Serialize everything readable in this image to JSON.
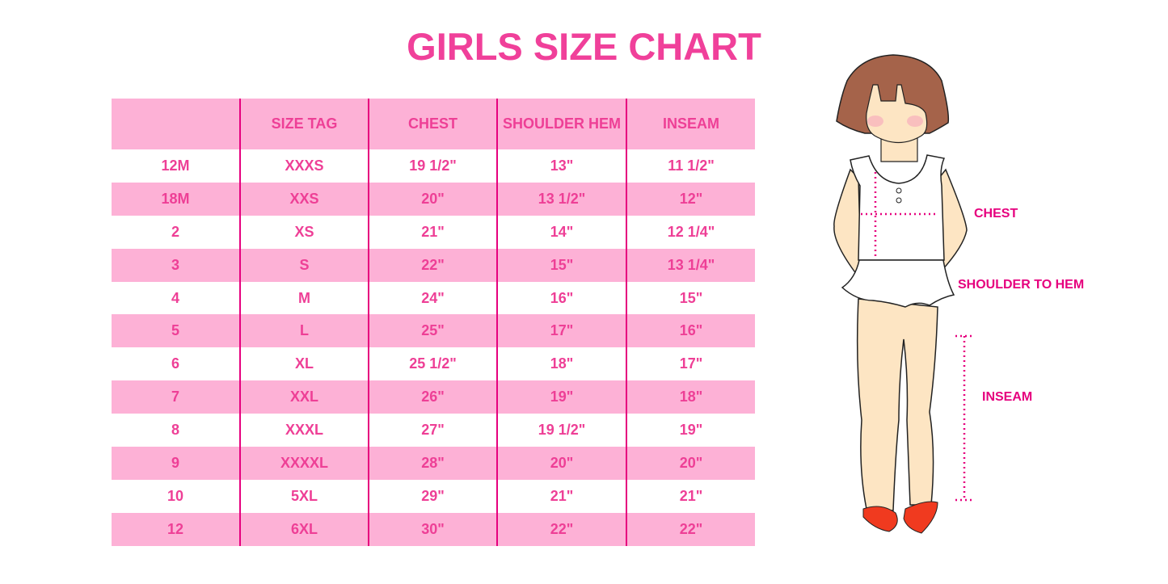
{
  "title": "GIRLS SIZE CHART",
  "table": {
    "headers": [
      "",
      "SIZE TAG",
      "CHEST",
      "SHOULDER HEM",
      "INSEAM"
    ],
    "rows": [
      [
        "12M",
        "XXXS",
        "19 1/2\"",
        "13\"",
        "11 1/2\""
      ],
      [
        "18M",
        "XXS",
        "20\"",
        "13 1/2\"",
        "12\""
      ],
      [
        "2",
        "XS",
        "21\"",
        "14\"",
        "12 1/4\""
      ],
      [
        "3",
        "S",
        "22\"",
        "15\"",
        "13 1/4\""
      ],
      [
        "4",
        "M",
        "24\"",
        "16\"",
        "15\""
      ],
      [
        "5",
        "L",
        "25\"",
        "17\"",
        "16\""
      ],
      [
        "6",
        "XL",
        "25 1/2\"",
        "18\"",
        "17\""
      ],
      [
        "7",
        "XXL",
        "26\"",
        "19\"",
        "18\""
      ],
      [
        "8",
        "XXXL",
        "27\"",
        "19 1/2\"",
        "19\""
      ],
      [
        "9",
        "XXXXL",
        "28\"",
        "20\"",
        "20\""
      ],
      [
        "10",
        "5XL",
        "29\"",
        "21\"",
        "21\""
      ],
      [
        "12",
        "6XL",
        "30\"",
        "22\"",
        "22\""
      ]
    ]
  },
  "figure": {
    "labels": {
      "chest": "CHEST",
      "shoulder_to_hem": "SHOULDER TO HEM",
      "inseam": "INSEAM"
    }
  },
  "colors": {
    "accent": "#ee3f96",
    "row_pink": "#fdb1d6",
    "divider": "#e6007e"
  }
}
